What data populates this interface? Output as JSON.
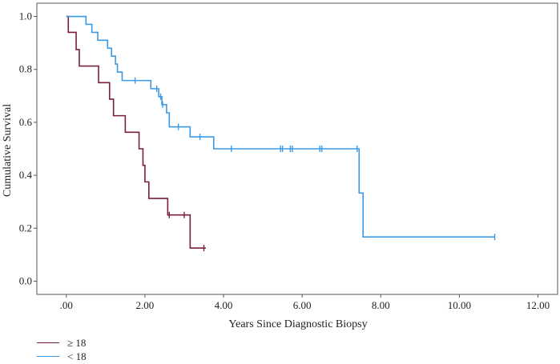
{
  "chart_data": {
    "type": "line",
    "title": "",
    "xlabel": "Years Since Diagnostic Biopsy",
    "ylabel": "Cumulative Survival",
    "xlim": [
      -0.75,
      12.5
    ],
    "ylim": [
      -0.05,
      1.05
    ],
    "x_ticks": [
      0,
      2,
      4,
      6,
      8,
      10,
      12
    ],
    "x_tick_labels": [
      ".00",
      "2.00",
      "4.00",
      "6.00",
      "8.00",
      "10.00",
      "12.00"
    ],
    "y_ticks": [
      0,
      0.2,
      0.4,
      0.6,
      0.8,
      1.0
    ],
    "y_tick_labels": [
      "0.0",
      "0.2",
      "0.4",
      "0.6",
      "0.8",
      "1.0"
    ],
    "legend_position": "bottom-left",
    "series": [
      {
        "name": "≥ 18",
        "color": "#7a1e3c",
        "steps": [
          [
            0.0,
            1.0
          ],
          [
            0.05,
            0.94
          ],
          [
            0.25,
            0.875
          ],
          [
            0.33,
            0.8125
          ],
          [
            0.82,
            0.75
          ],
          [
            1.1,
            0.6875
          ],
          [
            1.2,
            0.625
          ],
          [
            1.5,
            0.5625
          ],
          [
            1.85,
            0.5
          ],
          [
            1.95,
            0.4375
          ],
          [
            2.0,
            0.375
          ],
          [
            2.1,
            0.3125
          ],
          [
            2.58,
            0.25
          ],
          [
            3.15,
            0.125
          ],
          [
            3.55,
            0.125
          ]
        ],
        "censored": [
          [
            2.62,
            0.25
          ],
          [
            3.0,
            0.25
          ],
          [
            3.5,
            0.125
          ]
        ]
      },
      {
        "name": "< 18",
        "color": "#3a9ae6",
        "steps": [
          [
            0.0,
            1.0
          ],
          [
            0.5,
            0.97
          ],
          [
            0.65,
            0.94
          ],
          [
            0.8,
            0.91
          ],
          [
            1.05,
            0.88
          ],
          [
            1.15,
            0.85
          ],
          [
            1.25,
            0.82
          ],
          [
            1.3,
            0.79
          ],
          [
            1.42,
            0.758
          ],
          [
            2.15,
            0.727
          ],
          [
            2.35,
            0.697
          ],
          [
            2.43,
            0.667
          ],
          [
            2.55,
            0.636
          ],
          [
            2.62,
            0.583
          ],
          [
            3.15,
            0.545
          ],
          [
            3.75,
            0.5
          ],
          [
            7.45,
            0.333
          ],
          [
            7.55,
            0.167
          ],
          [
            10.9,
            0.167
          ]
        ],
        "censored": [
          [
            1.75,
            0.758
          ],
          [
            2.3,
            0.727
          ],
          [
            2.4,
            0.697
          ],
          [
            2.45,
            0.667
          ],
          [
            2.85,
            0.583
          ],
          [
            3.4,
            0.545
          ],
          [
            4.2,
            0.5
          ],
          [
            5.45,
            0.5
          ],
          [
            5.5,
            0.5
          ],
          [
            5.7,
            0.5
          ],
          [
            5.75,
            0.5
          ],
          [
            6.45,
            0.5
          ],
          [
            6.5,
            0.5
          ],
          [
            7.4,
            0.5
          ],
          [
            10.9,
            0.167
          ]
        ]
      }
    ]
  }
}
